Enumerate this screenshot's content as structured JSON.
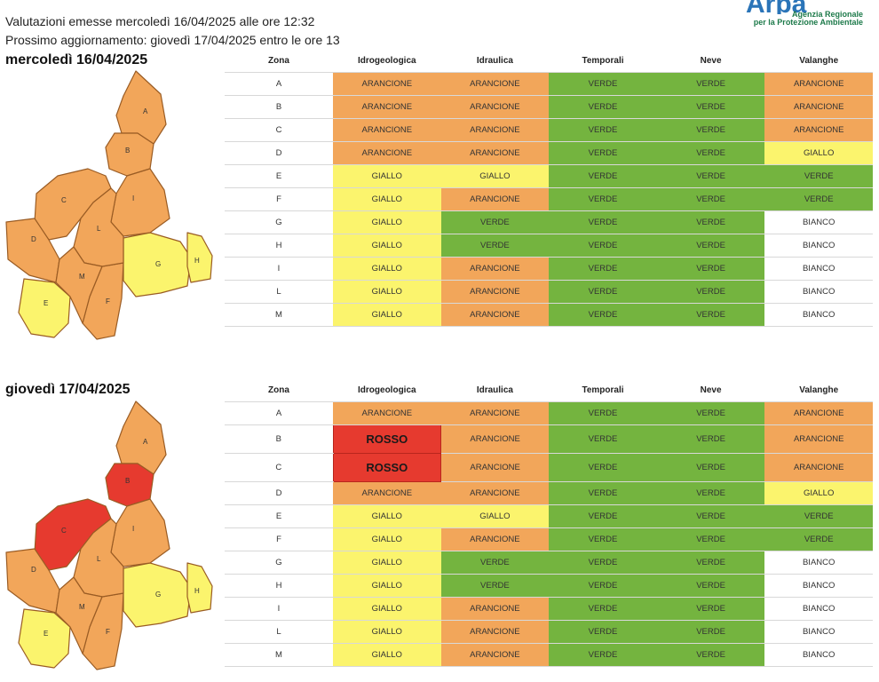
{
  "header": {
    "line1": "Valutazioni emesse mercoledì 16/04/2025 alle ore 12:32",
    "line2": "Prossimo aggiornamento: giovedì 17/04/2025 entro le ore 13"
  },
  "logo": {
    "mark": "Arpa",
    "line1": "Agenzia Regionale",
    "line2": "per la Protezione Ambientale"
  },
  "columns": [
    "Zona",
    "Idrogeologica",
    "Idraulica",
    "Temporali",
    "Neve",
    "Valanghe"
  ],
  "zone_labels": [
    "A",
    "B",
    "C",
    "D",
    "E",
    "F",
    "G",
    "H",
    "I",
    "L",
    "M"
  ],
  "colors": {
    "ARANCIONE": "#f2a65a",
    "VERDE": "#74b43f",
    "GIALLO": "#fbf46d",
    "BIANCO": "#ffffff",
    "ROSSO": "#e63a2f",
    "map_stroke": "#9a5c24"
  },
  "days": [
    {
      "title": "mercoledì 16/04/2025",
      "zone_colors": {
        "A": "ARANCIONE",
        "B": "ARANCIONE",
        "C": "ARANCIONE",
        "D": "ARANCIONE",
        "E": "GIALLO",
        "F": "ARANCIONE",
        "G": "GIALLO",
        "H": "GIALLO",
        "I": "ARANCIONE",
        "L": "ARANCIONE",
        "M": "ARANCIONE"
      },
      "rows": [
        [
          "A",
          "ARANCIONE",
          "ARANCIONE",
          "VERDE",
          "VERDE",
          "ARANCIONE"
        ],
        [
          "B",
          "ARANCIONE",
          "ARANCIONE",
          "VERDE",
          "VERDE",
          "ARANCIONE"
        ],
        [
          "C",
          "ARANCIONE",
          "ARANCIONE",
          "VERDE",
          "VERDE",
          "ARANCIONE"
        ],
        [
          "D",
          "ARANCIONE",
          "ARANCIONE",
          "VERDE",
          "VERDE",
          "GIALLO"
        ],
        [
          "E",
          "GIALLO",
          "GIALLO",
          "VERDE",
          "VERDE",
          "VERDE"
        ],
        [
          "F",
          "GIALLO",
          "ARANCIONE",
          "VERDE",
          "VERDE",
          "VERDE"
        ],
        [
          "G",
          "GIALLO",
          "VERDE",
          "VERDE",
          "VERDE",
          "BIANCO"
        ],
        [
          "H",
          "GIALLO",
          "VERDE",
          "VERDE",
          "VERDE",
          "BIANCO"
        ],
        [
          "I",
          "GIALLO",
          "ARANCIONE",
          "VERDE",
          "VERDE",
          "BIANCO"
        ],
        [
          "L",
          "GIALLO",
          "ARANCIONE",
          "VERDE",
          "VERDE",
          "BIANCO"
        ],
        [
          "M",
          "GIALLO",
          "ARANCIONE",
          "VERDE",
          "VERDE",
          "BIANCO"
        ]
      ]
    },
    {
      "title": "giovedì 17/04/2025",
      "zone_colors": {
        "A": "ARANCIONE",
        "B": "ROSSO",
        "C": "ROSSO",
        "D": "ARANCIONE",
        "E": "GIALLO",
        "F": "ARANCIONE",
        "G": "GIALLO",
        "H": "GIALLO",
        "I": "ARANCIONE",
        "L": "ARANCIONE",
        "M": "ARANCIONE"
      },
      "rows": [
        [
          "A",
          "ARANCIONE",
          "ARANCIONE",
          "VERDE",
          "VERDE",
          "ARANCIONE"
        ],
        [
          "B",
          "ROSSO",
          "ARANCIONE",
          "VERDE",
          "VERDE",
          "ARANCIONE"
        ],
        [
          "C",
          "ROSSO",
          "ARANCIONE",
          "VERDE",
          "VERDE",
          "ARANCIONE"
        ],
        [
          "D",
          "ARANCIONE",
          "ARANCIONE",
          "VERDE",
          "VERDE",
          "GIALLO"
        ],
        [
          "E",
          "GIALLO",
          "GIALLO",
          "VERDE",
          "VERDE",
          "VERDE"
        ],
        [
          "F",
          "GIALLO",
          "ARANCIONE",
          "VERDE",
          "VERDE",
          "VERDE"
        ],
        [
          "G",
          "GIALLO",
          "VERDE",
          "VERDE",
          "VERDE",
          "BIANCO"
        ],
        [
          "H",
          "GIALLO",
          "VERDE",
          "VERDE",
          "VERDE",
          "BIANCO"
        ],
        [
          "I",
          "GIALLO",
          "ARANCIONE",
          "VERDE",
          "VERDE",
          "BIANCO"
        ],
        [
          "L",
          "GIALLO",
          "ARANCIONE",
          "VERDE",
          "VERDE",
          "BIANCO"
        ],
        [
          "M",
          "GIALLO",
          "ARANCIONE",
          "VERDE",
          "VERDE",
          "BIANCO"
        ]
      ]
    }
  ]
}
